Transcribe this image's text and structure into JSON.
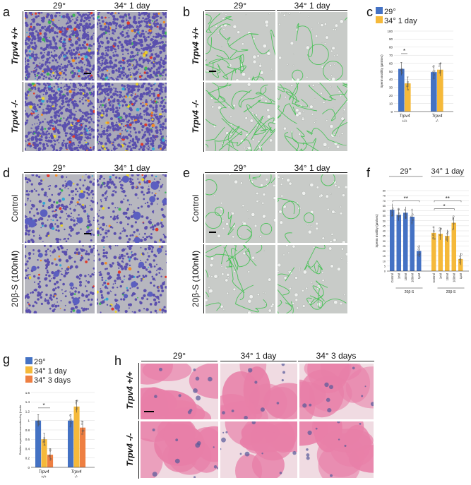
{
  "colors": {
    "blue": "#4472c4",
    "yellow": "#f5b93a",
    "orange": "#ee7f42",
    "motility_bg": "#a9a9b8",
    "motility_dot": "#5a4fae",
    "tracks_bg": "#c8cbc8",
    "track_green": "#4cc25a",
    "histo_pink": "#e87fa8",
    "histo_blue": "#555a9a"
  },
  "panels": {
    "a": {
      "label": "a",
      "col_headers": [
        "29°",
        "34° 1 day"
      ],
      "row_labels": [
        "Trpv4 +/+",
        "Trpv4 -/-"
      ]
    },
    "b": {
      "label": "b",
      "col_headers": [
        "29°",
        "34° 1 day"
      ],
      "row_labels": [
        "Trpv4 +/+",
        "Trpv4 -/-"
      ]
    },
    "c": {
      "label": "c"
    },
    "d": {
      "label": "d",
      "col_headers": [
        "29°",
        "34° 1 day"
      ],
      "row_labels": [
        "Control",
        "20β-S (100nM)"
      ]
    },
    "e": {
      "label": "e",
      "col_headers": [
        "29°",
        "34° 1 day"
      ],
      "row_labels": [
        "Control",
        "20β-S (100nM)"
      ]
    },
    "f": {
      "label": "f"
    },
    "g": {
      "label": "g"
    },
    "h": {
      "label": "h",
      "col_headers": [
        "29°",
        "34° 1 day",
        "34° 3 days"
      ],
      "row_labels": [
        "Trpv4 +/+",
        "Trpv4 -/-"
      ]
    }
  },
  "chart_data": [
    {
      "id": "c",
      "type": "bar",
      "ylabel": "Sperm motility (µm/sec)",
      "ylim": [
        0,
        100
      ],
      "yticks": [
        0,
        10,
        20,
        30,
        40,
        50,
        60,
        70,
        80,
        90,
        100
      ],
      "legend": {
        "placement": "top-left",
        "entries": [
          "29°",
          "34° 1 day"
        ]
      },
      "categories": [
        "Trpv4 +/+",
        "Trpv4 -/-"
      ],
      "series": [
        {
          "name": "29°",
          "color": "#4472c4",
          "values": [
            53,
            49
          ]
        },
        {
          "name": "34° 1 day",
          "color": "#f5b93a",
          "values": [
            35,
            52
          ]
        }
      ],
      "significance": [
        {
          "text": "*",
          "category": "Trpv4 +/+"
        }
      ]
    },
    {
      "id": "f",
      "type": "bar",
      "ylabel": "Sperm motility (µm/sec)",
      "ylim": [
        0,
        80
      ],
      "yticks": [
        0,
        5,
        10,
        15,
        20,
        25,
        30,
        35,
        40,
        45,
        50,
        55,
        60,
        65,
        70,
        75,
        80
      ],
      "group_titles": [
        "29°",
        "34° 1 day"
      ],
      "categories": [
        "Control",
        "1nM",
        "10nM",
        "100nM",
        "1µM"
      ],
      "group_sublabel": "20β-S",
      "series": [
        {
          "name": "29°",
          "color": "#4472c4",
          "values": [
            61,
            56,
            58,
            54,
            20
          ]
        },
        {
          "name": "34° 1 day",
          "color": "#f5b93a",
          "values": [
            38,
            37,
            35,
            48,
            12
          ]
        }
      ],
      "significance": [
        {
          "text": "**",
          "group": "29°"
        },
        {
          "text": "*",
          "group": "34° 1 day"
        },
        {
          "text": "**",
          "group": "34° 1 day"
        }
      ]
    },
    {
      "id": "g",
      "type": "bar",
      "ylabel": "Relative expression normalized by β-actin",
      "ylim": [
        0,
        1.6
      ],
      "yticks": [
        0,
        0.2,
        0.4,
        0.6,
        0.8,
        1.0,
        1.2,
        1.4,
        1.6
      ],
      "ytick_labels": [
        "0",
        "0.2",
        "0.4",
        "0.6",
        "0.8",
        "1",
        "1.2",
        "1.4",
        "1.6"
      ],
      "legend": {
        "placement": "top-left",
        "entries": [
          "29°",
          "34° 1 day",
          "34° 3 days"
        ]
      },
      "categories": [
        "Trpv4 +/+",
        "Trpv4 -/-"
      ],
      "series": [
        {
          "name": "29°",
          "color": "#4472c4",
          "values": [
            1.0,
            1.0
          ]
        },
        {
          "name": "34° 1 day",
          "color": "#f5b93a",
          "values": [
            0.6,
            1.3
          ]
        },
        {
          "name": "34° 3 days",
          "color": "#ee7f42",
          "values": [
            0.27,
            0.85
          ]
        }
      ],
      "significance": [
        {
          "text": "*",
          "category": "Trpv4 +/+"
        }
      ]
    }
  ]
}
